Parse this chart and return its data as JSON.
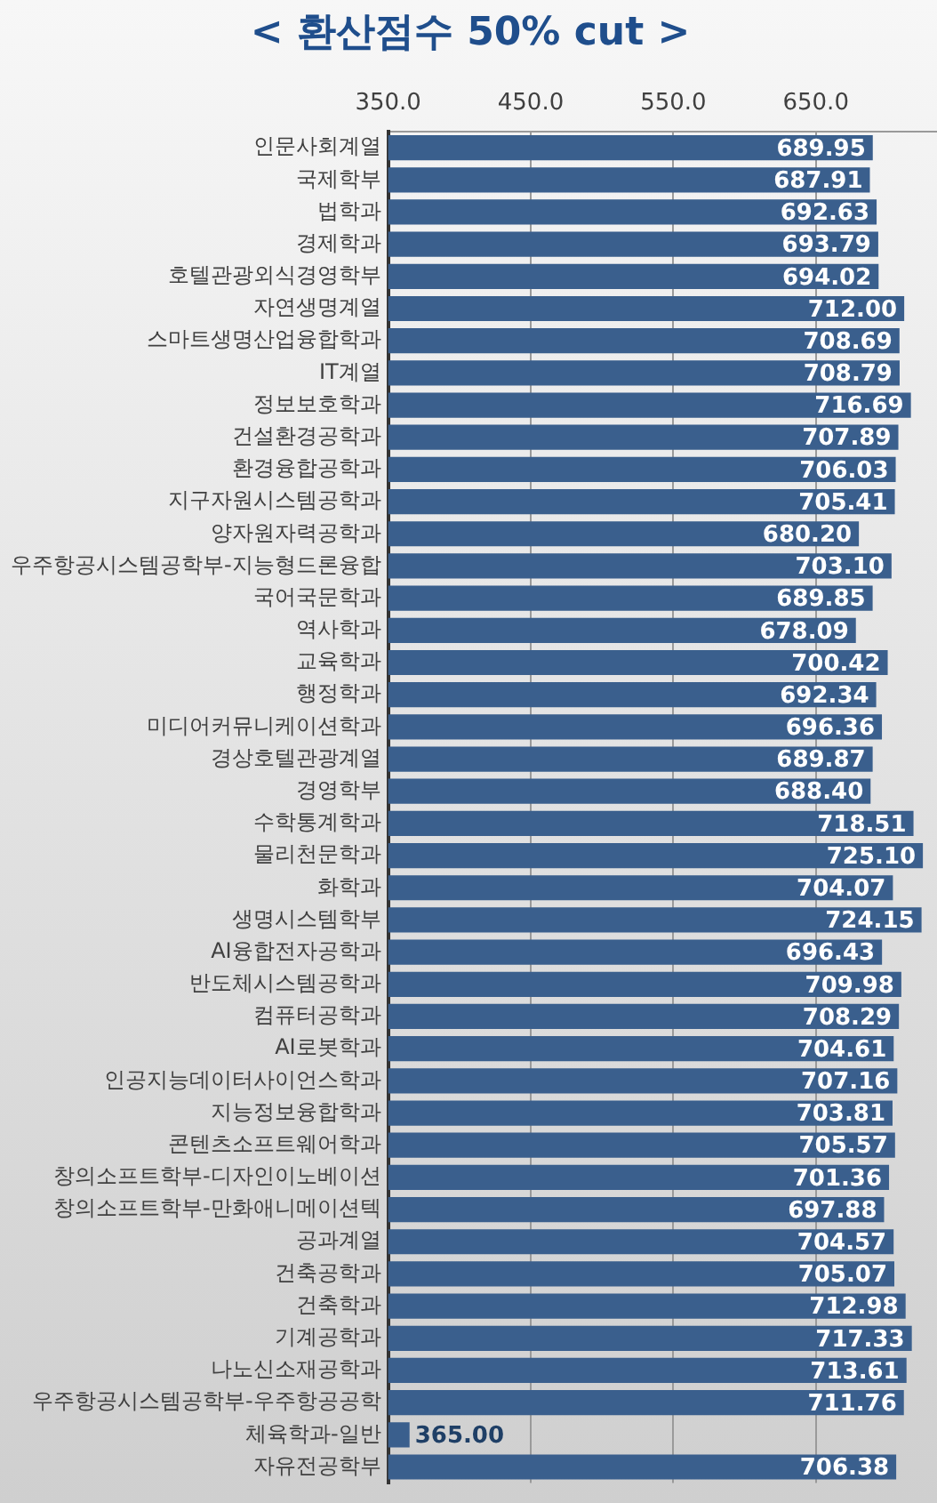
{
  "chart_data": {
    "type": "bar",
    "orientation": "horizontal",
    "title": "< 환산점수 50% cut >",
    "categories": [
      "인문사회계열",
      "국제학부",
      "법학과",
      "경제학과",
      "호텔관광외식경영학부",
      "자연생명계열",
      "스마트생명산업융합학과",
      "IT계열",
      "정보보호학과",
      "건설환경공학과",
      "환경융합공학과",
      "지구자원시스템공학과",
      "양자원자력공학과",
      "우주항공시스템공학부-지능형드론융합",
      "국어국문학과",
      "역사학과",
      "교육학과",
      "행정학과",
      "미디어커뮤니케이션학과",
      "경상호텔관광계열",
      "경영학부",
      "수학통계학과",
      "물리천문학과",
      "화학과",
      "생명시스템학부",
      "AI융합전자공학과",
      "반도체시스템공학과",
      "컴퓨터공학과",
      "AI로봇학과",
      "인공지능데이터사이언스학과",
      "지능정보융합학과",
      "콘텐츠소프트웨어학과",
      "창의소프트학부-디자인이노베이션",
      "창의소프트학부-만화애니메이션텍",
      "공과계열",
      "건축공학과",
      "건축학과",
      "기계공학과",
      "나노신소재공학과",
      "우주항공시스템공학부-우주항공공학",
      "체육학과-일반",
      "자유전공학부"
    ],
    "values": [
      689.95,
      687.91,
      692.63,
      693.79,
      694.02,
      712.0,
      708.69,
      708.79,
      716.69,
      707.89,
      706.03,
      705.41,
      680.2,
      703.1,
      689.85,
      678.09,
      700.42,
      692.34,
      696.36,
      689.87,
      688.4,
      718.51,
      725.1,
      704.07,
      724.15,
      696.43,
      709.98,
      708.29,
      704.61,
      707.16,
      703.81,
      705.57,
      701.36,
      697.88,
      704.57,
      705.07,
      712.98,
      717.33,
      713.61,
      711.76,
      365.0,
      706.38
    ],
    "value_labels": [
      "689.95",
      "687.91",
      "692.63",
      "693.79",
      "694.02",
      "712.00",
      "708.69",
      "708.79",
      "716.69",
      "707.89",
      "706.03",
      "705.41",
      "680.20",
      "703.10",
      "689.85",
      "678.09",
      "700.42",
      "692.34",
      "696.36",
      "689.87",
      "688.40",
      "718.51",
      "725.10",
      "704.07",
      "724.15",
      "696.43",
      "709.98",
      "708.29",
      "704.61",
      "707.16",
      "703.81",
      "705.57",
      "701.36",
      "697.88",
      "704.57",
      "705.07",
      "712.98",
      "717.33",
      "713.61",
      "711.76",
      "365.00",
      "706.38"
    ],
    "color": "#3a5f8d",
    "xlim": [
      350,
      735
    ],
    "xticks": [
      {
        "value": 350,
        "label": "350.0"
      },
      {
        "value": 450,
        "label": "450.0"
      },
      {
        "value": 550,
        "label": "550.0"
      },
      {
        "value": 650,
        "label": "650.0"
      }
    ],
    "grid": "x"
  }
}
